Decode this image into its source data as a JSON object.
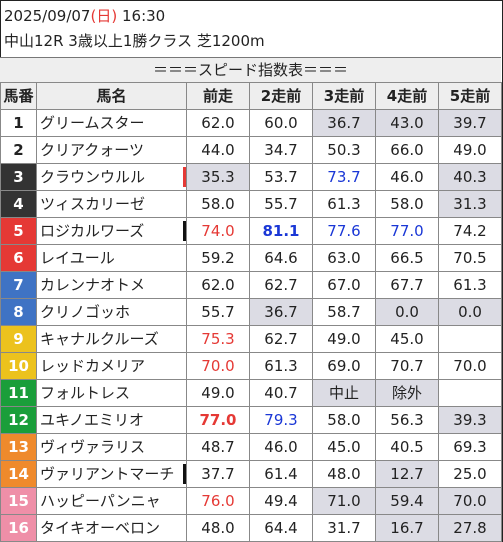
{
  "header": {
    "date": "2025/09/07",
    "weekday_open": "(",
    "weekday": "日",
    "weekday_close": ")",
    "time": "16:30",
    "race": "中山12R 3歳以上1勝クラス 芝1200m",
    "title": "＝＝＝スピード指数表＝＝＝"
  },
  "columns": [
    "馬番",
    "馬名",
    "前走",
    "2走前",
    "3走前",
    "4走前",
    "5走前"
  ],
  "colors": {
    "red_text": "#e53935",
    "blue_text": "#1a37d6",
    "gray_cell": "#dcdce4",
    "header_bg": "#eeeeee"
  },
  "rows": [
    {
      "num": "1",
      "name": "グリームスター",
      "gate_color": "#ffffff",
      "num_color": "#222222",
      "mark": "",
      "cells": [
        {
          "v": "62.0"
        },
        {
          "v": "60.0"
        },
        {
          "v": "36.7",
          "g": 1
        },
        {
          "v": "43.0",
          "g": 1
        },
        {
          "v": "39.7",
          "g": 1
        }
      ]
    },
    {
      "num": "2",
      "name": "クリアクォーツ",
      "gate_color": "#ffffff",
      "num_color": "#222222",
      "mark": "",
      "cells": [
        {
          "v": "44.0"
        },
        {
          "v": "34.7"
        },
        {
          "v": "50.3"
        },
        {
          "v": "66.0"
        },
        {
          "v": "49.0"
        }
      ]
    },
    {
      "num": "3",
      "name": "クラウンウルル",
      "gate_color": "#333333",
      "num_color": "#ffffff",
      "mark": "#e53935",
      "cells": [
        {
          "v": "35.3",
          "g": 1
        },
        {
          "v": "53.7"
        },
        {
          "v": "73.7",
          "c": "blue"
        },
        {
          "v": "46.0"
        },
        {
          "v": "40.3",
          "g": 1
        }
      ]
    },
    {
      "num": "4",
      "name": "ツィスカリーゼ",
      "gate_color": "#333333",
      "num_color": "#ffffff",
      "mark": "",
      "cells": [
        {
          "v": "58.0"
        },
        {
          "v": "55.7"
        },
        {
          "v": "61.3"
        },
        {
          "v": "58.0"
        },
        {
          "v": "31.3",
          "g": 1
        }
      ]
    },
    {
      "num": "5",
      "name": "ロジカルワーズ",
      "gate_color": "#e53935",
      "num_color": "#ffffff",
      "mark": "#111111",
      "cells": [
        {
          "v": "74.0",
          "c": "red"
        },
        {
          "v": "81.1",
          "c": "blue",
          "b": 1
        },
        {
          "v": "77.6",
          "c": "blue"
        },
        {
          "v": "77.0",
          "c": "blue"
        },
        {
          "v": "74.2"
        }
      ]
    },
    {
      "num": "6",
      "name": "レイユール",
      "gate_color": "#e53935",
      "num_color": "#ffffff",
      "mark": "",
      "cells": [
        {
          "v": "59.2"
        },
        {
          "v": "64.6"
        },
        {
          "v": "63.0"
        },
        {
          "v": "66.5"
        },
        {
          "v": "70.5"
        }
      ]
    },
    {
      "num": "7",
      "name": "カレンナオトメ",
      "gate_color": "#3f73c4",
      "num_color": "#ffffff",
      "mark": "",
      "cells": [
        {
          "v": "62.0"
        },
        {
          "v": "62.7"
        },
        {
          "v": "67.0"
        },
        {
          "v": "67.7"
        },
        {
          "v": "61.3"
        }
      ]
    },
    {
      "num": "8",
      "name": "クリノゴッホ",
      "gate_color": "#3f73c4",
      "num_color": "#ffffff",
      "mark": "",
      "cells": [
        {
          "v": "55.7"
        },
        {
          "v": "36.7",
          "g": 1
        },
        {
          "v": "58.7"
        },
        {
          "v": "0.0",
          "g": 1
        },
        {
          "v": "0.0",
          "g": 1
        }
      ]
    },
    {
      "num": "9",
      "name": "キャナルクルーズ",
      "gate_color": "#ecc21d",
      "num_color": "#ffffff",
      "mark": "",
      "cells": [
        {
          "v": "75.3",
          "c": "red"
        },
        {
          "v": "62.7"
        },
        {
          "v": "49.0"
        },
        {
          "v": "45.0"
        },
        {
          "v": ""
        }
      ]
    },
    {
      "num": "10",
      "name": "レッドカメリア",
      "gate_color": "#ecc21d",
      "num_color": "#ffffff",
      "mark": "",
      "cells": [
        {
          "v": "70.0",
          "c": "red"
        },
        {
          "v": "61.3"
        },
        {
          "v": "69.0"
        },
        {
          "v": "70.7"
        },
        {
          "v": "70.0"
        }
      ]
    },
    {
      "num": "11",
      "name": "フォルトレス",
      "gate_color": "#1a9e3a",
      "num_color": "#ffffff",
      "mark": "",
      "cells": [
        {
          "v": "49.0"
        },
        {
          "v": "40.7"
        },
        {
          "v": "中止",
          "g": 1
        },
        {
          "v": "除外",
          "g": 1
        },
        {
          "v": ""
        }
      ]
    },
    {
      "num": "12",
      "name": "ユキノエミリオ",
      "gate_color": "#1a9e3a",
      "num_color": "#ffffff",
      "mark": "",
      "cells": [
        {
          "v": "77.0",
          "c": "red",
          "b": 1
        },
        {
          "v": "79.3",
          "c": "blue"
        },
        {
          "v": "58.0"
        },
        {
          "v": "56.3"
        },
        {
          "v": "39.3",
          "g": 1
        }
      ]
    },
    {
      "num": "13",
      "name": "ヴィヴァラリス",
      "gate_color": "#ef8a2c",
      "num_color": "#ffffff",
      "mark": "",
      "cells": [
        {
          "v": "48.7"
        },
        {
          "v": "46.0"
        },
        {
          "v": "45.0"
        },
        {
          "v": "40.5"
        },
        {
          "v": "69.3"
        }
      ]
    },
    {
      "num": "14",
      "name": "ヴァリアントマーチ",
      "gate_color": "#ef8a2c",
      "num_color": "#ffffff",
      "mark": "#111111",
      "cells": [
        {
          "v": "37.7"
        },
        {
          "v": "61.4"
        },
        {
          "v": "48.0"
        },
        {
          "v": "12.7",
          "g": 1
        },
        {
          "v": "25.0"
        }
      ]
    },
    {
      "num": "15",
      "name": "ハッピーパンニャ",
      "gate_color": "#ef8fa8",
      "num_color": "#ffffff",
      "mark": "",
      "cells": [
        {
          "v": "76.0",
          "c": "red"
        },
        {
          "v": "49.4"
        },
        {
          "v": "71.0",
          "g": 1
        },
        {
          "v": "59.4",
          "g": 1
        },
        {
          "v": "70.0",
          "g": 1
        }
      ]
    },
    {
      "num": "16",
      "name": "タイキオーベロン",
      "gate_color": "#ef8fa8",
      "num_color": "#ffffff",
      "mark": "",
      "cells": [
        {
          "v": "48.0"
        },
        {
          "v": "64.4"
        },
        {
          "v": "31.7"
        },
        {
          "v": "16.7",
          "g": 1
        },
        {
          "v": "27.8",
          "g": 1
        }
      ]
    }
  ]
}
